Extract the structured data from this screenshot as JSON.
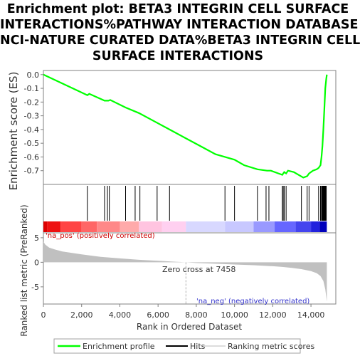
{
  "title_lines": [
    "Enrichment plot: BETA3 INTEGRIN CELL SURFACE",
    "INTERACTIONS%PATHWAY INTERACTION DATABASE",
    "NCI-NATURE CURATED DATA%BETA3 INTEGRIN CELL",
    "SURFACE INTERACTIONS"
  ],
  "colors": {
    "enrichment_line": "#00ff00",
    "hit_line": "#000000",
    "metric_fill": "#c0c0c0",
    "pos_label": "#cc0000",
    "neg_label": "#3333cc",
    "zero_line": "#b0b0b0"
  },
  "chart_data": {
    "type": "line",
    "es_panel": {
      "ylabel": "Enrichment score (ES)",
      "ylim": [
        -0.8,
        0.03
      ],
      "yticks": [
        0.0,
        -0.1,
        -0.2,
        -0.3,
        -0.4,
        -0.5,
        -0.6,
        -0.7
      ],
      "ytick_labels": [
        "0.0",
        "-0.1",
        "-0.2",
        "-0.3",
        "-0.4",
        "-0.5",
        "-0.6",
        "-0.7"
      ],
      "series": [
        {
          "name": "Enrichment profile",
          "x": [
            0,
            2300,
            2400,
            3200,
            3400,
            3500,
            4300,
            5000,
            5800,
            6600,
            7400,
            8200,
            9000,
            9500,
            10000,
            10500,
            11200,
            11700,
            11900,
            12300,
            12500,
            12600,
            12700,
            12800,
            13100,
            13600,
            13800,
            13900,
            14100,
            14300,
            14400,
            14500,
            14550,
            14600,
            14650,
            14700,
            14750,
            14800,
            14830
          ],
          "y": [
            0.0,
            -0.15,
            -0.14,
            -0.19,
            -0.19,
            -0.185,
            -0.24,
            -0.28,
            -0.34,
            -0.4,
            -0.46,
            -0.52,
            -0.58,
            -0.6,
            -0.62,
            -0.66,
            -0.69,
            -0.7,
            -0.7,
            -0.72,
            -0.73,
            -0.71,
            -0.72,
            -0.7,
            -0.71,
            -0.75,
            -0.74,
            -0.72,
            -0.7,
            -0.69,
            -0.68,
            -0.66,
            -0.6,
            -0.52,
            -0.4,
            -0.25,
            -0.1,
            -0.03,
            0.0
          ]
        }
      ]
    },
    "hits": {
      "name": "Hits",
      "positions": [
        2300,
        3200,
        3350,
        3450,
        4300,
        4800,
        5050,
        5950,
        6600,
        9500,
        10000,
        11200,
        11650,
        11800,
        12500,
        12550,
        12600,
        12700,
        13500,
        13800,
        13900,
        14400,
        14500,
        14550,
        14580,
        14600,
        14620,
        14640,
        14660,
        14680,
        14700,
        14720,
        14740,
        14760,
        14780,
        14800
      ]
    },
    "ranking_panel": {
      "ylabel": "Ranked list metric (PreRanked)",
      "series_name": "Ranking metric scores",
      "yticks": [
        5,
        0,
        -5
      ],
      "ytick_labels": [
        "5",
        "0",
        "-5"
      ],
      "ylim": [
        -8.5,
        6
      ],
      "x": [
        0,
        100,
        300,
        600,
        1000,
        2000,
        3000,
        4000,
        5000,
        6000,
        7000,
        7458,
        8000,
        9000,
        10000,
        11000,
        12000,
        12500,
        13000,
        13500,
        14000,
        14300,
        14500,
        14650,
        14750,
        14830
      ],
      "values": [
        4.2,
        3.6,
        3.0,
        2.6,
        2.2,
        1.6,
        1.1,
        0.8,
        0.5,
        0.3,
        0.1,
        0.0,
        -0.15,
        -0.3,
        -0.45,
        -0.6,
        -0.8,
        -0.95,
        -1.15,
        -1.4,
        -1.8,
        -2.2,
        -2.8,
        -3.8,
        -5.5,
        -8.0
      ],
      "zero_cross_label": "Zero cross at 7458",
      "zero_cross_x": 7458,
      "pos_label": "'na_pos' (positively correlated)",
      "neg_label": "'na_neg' (negatively correlated)"
    },
    "heatmap_segments": [
      {
        "from": 0,
        "to": 200,
        "color": "#dd0000"
      },
      {
        "from": 200,
        "to": 900,
        "color": "#ee1111"
      },
      {
        "from": 900,
        "to": 2000,
        "color": "#ff4444"
      },
      {
        "from": 2000,
        "to": 2800,
        "color": "#ff6666"
      },
      {
        "from": 2800,
        "to": 4000,
        "color": "#ff8888"
      },
      {
        "from": 4000,
        "to": 5000,
        "color": "#ffaaaa"
      },
      {
        "from": 5000,
        "to": 6200,
        "color": "#ffc4e0"
      },
      {
        "from": 6200,
        "to": 7458,
        "color": "#ffd0f0"
      },
      {
        "from": 7458,
        "to": 9500,
        "color": "#d8d8ff"
      },
      {
        "from": 9500,
        "to": 11000,
        "color": "#c8c8ff"
      },
      {
        "from": 11000,
        "to": 12100,
        "color": "#9999ff"
      },
      {
        "from": 12100,
        "to": 13200,
        "color": "#6666ff"
      },
      {
        "from": 13200,
        "to": 14000,
        "color": "#4444ee"
      },
      {
        "from": 14000,
        "to": 14450,
        "color": "#2222dd"
      },
      {
        "from": 14450,
        "to": 14830,
        "color": "#0000bb"
      }
    ],
    "xaxis": {
      "label": "Rank in Ordered Dataset",
      "xlim": [
        0,
        15300
      ],
      "ticks": [
        0,
        2000,
        4000,
        6000,
        8000,
        10000,
        12000,
        14000
      ],
      "tick_labels": [
        "0",
        "2,000",
        "4,000",
        "6,000",
        "8,000",
        "10,000",
        "12,000",
        "14,000"
      ]
    },
    "legend": {
      "placement": "bottom",
      "items": [
        "Enrichment profile",
        "Hits",
        "Ranking metric scores"
      ]
    }
  }
}
